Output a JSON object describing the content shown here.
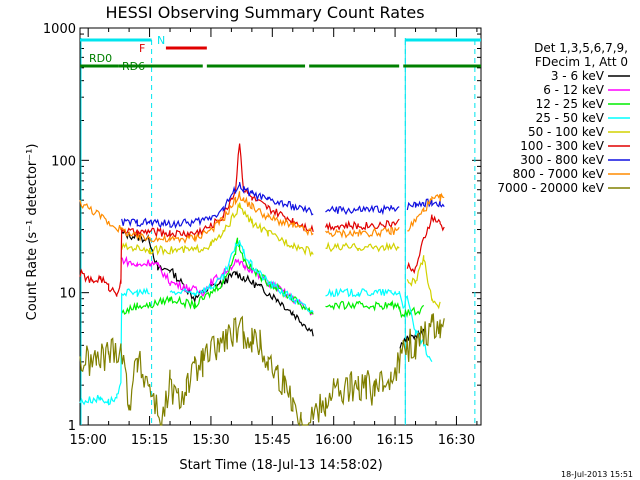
{
  "chart_data": {
    "type": "line",
    "title": "HESSI Observing Summary Count Rates",
    "xlabel": "Start Time (18-Jul-13 14:58:02)",
    "ylabel": "Count Rate (s⁻¹ detector⁻¹)",
    "y_scale": "log",
    "ylim": [
      1,
      1000
    ],
    "xlim_minutes": [
      -2,
      38
    ],
    "x_ticks": [
      "15:00",
      "15:15",
      "15:30",
      "15:45",
      "16:00",
      "16:15",
      "16:30"
    ],
    "x_tick_minutes": [
      0,
      15,
      30,
      45,
      60,
      75,
      90
    ],
    "y_ticks": [
      "1",
      "10",
      "100",
      "1000"
    ],
    "y_tick_values": [
      1,
      10,
      100,
      1000
    ],
    "legend_header": [
      "Det 1,3,5,6,7,9,",
      "FDecim 1, Att 0"
    ],
    "legend_placement": "right",
    "timestamp": "18-Jul-2013 15:51",
    "flags": [
      {
        "name": "N",
        "color": "#00e5ee",
        "segments": [
          [
            -2,
            15.5
          ],
          [
            77.5,
            96
          ]
        ]
      },
      {
        "name": "F",
        "color": "#e00000",
        "segments": [
          [
            19,
            29
          ]
        ]
      },
      {
        "name": "RD0",
        "color": "#008000",
        "segments": [
          [
            -2,
            7.5
          ]
        ]
      },
      {
        "name": "RD6",
        "color": "#008000",
        "segments": [
          [
            7.5,
            28
          ],
          [
            29,
            53
          ],
          [
            54,
            76
          ],
          [
            77,
            96
          ]
        ]
      }
    ],
    "saa_lines_minutes": [
      15.5,
      77.5,
      94.5
    ],
    "series": [
      {
        "name": "3 - 6 keV",
        "color": "#000000",
        "x": [
          -2,
          8,
          8.2,
          15,
          17,
          20,
          26,
          30,
          33,
          36,
          38,
          42,
          46,
          50,
          55,
          58,
          66,
          74,
          76,
          76.2,
          78,
          82
        ],
        "y": [
          null,
          null,
          28,
          25,
          15,
          15,
          9,
          11,
          12,
          14,
          13,
          11,
          9,
          7,
          5,
          null,
          null,
          null,
          null,
          4,
          4.5,
          5
        ]
      },
      {
        "name": "6 - 12 keV",
        "color": "#ff00ff",
        "x": [
          8,
          12,
          15,
          17,
          20,
          24,
          28,
          30,
          33,
          36,
          38,
          40,
          42,
          46,
          50,
          55,
          58
        ],
        "y": [
          18,
          16,
          17,
          16,
          12,
          11,
          10,
          12,
          14,
          17,
          16,
          15,
          13,
          11,
          9,
          7,
          null
        ]
      },
      {
        "name": "12 - 25 keV",
        "color": "#00ee00",
        "x": [
          -2,
          8,
          8.2,
          12,
          15,
          20,
          26,
          30,
          33,
          36,
          36.5,
          37,
          38,
          40,
          44,
          50,
          55,
          56,
          58,
          66,
          74,
          76,
          76.2,
          82
        ],
        "y": [
          null,
          null,
          7,
          8,
          8,
          9,
          8,
          10,
          12,
          20,
          26,
          22,
          18,
          15,
          12,
          9,
          7,
          null,
          8,
          8,
          8,
          8,
          7,
          7.5
        ]
      },
      {
        "name": "25 - 50 keV",
        "color": "#00ffff",
        "x": [
          -2,
          3,
          5,
          7,
          8,
          8.2,
          12,
          15,
          15.5,
          17,
          20,
          26,
          30,
          33,
          36,
          37,
          38,
          40,
          44,
          50,
          55,
          56,
          58,
          66,
          74,
          76,
          77,
          78,
          80,
          82,
          84
        ],
        "y": [
          1.5,
          1.6,
          1.5,
          1.6,
          2,
          10,
          10,
          10,
          null,
          null,
          10,
          10,
          11,
          13,
          22,
          25,
          20,
          16,
          12,
          9,
          7,
          null,
          10,
          10,
          10,
          10,
          8,
          9,
          5,
          4,
          3
        ]
      },
      {
        "name": "50 - 100 keV",
        "color": "#d2d200",
        "x": [
          -2,
          8,
          8.2,
          12,
          15,
          20,
          26,
          30,
          33,
          36,
          37,
          38,
          40,
          44,
          50,
          55,
          56,
          58,
          66,
          74,
          76,
          77,
          78,
          80,
          82,
          84,
          86
        ],
        "y": [
          null,
          null,
          22,
          22,
          21,
          21,
          21,
          23,
          28,
          40,
          45,
          40,
          34,
          28,
          23,
          20,
          null,
          22,
          22,
          22,
          22,
          null,
          12,
          12,
          18,
          9,
          8
        ]
      },
      {
        "name": "100 - 300 keV",
        "color": "#e00000",
        "x": [
          -2,
          1,
          3,
          5,
          7,
          8,
          8.2,
          12,
          15,
          20,
          26,
          30,
          33,
          36,
          37,
          38,
          40,
          44,
          50,
          55,
          56,
          58,
          66,
          74,
          76,
          77,
          78,
          80,
          82,
          84,
          86,
          87
        ],
        "y": [
          14,
          12,
          13,
          11,
          10,
          12,
          30,
          28,
          29,
          28,
          28,
          32,
          38,
          60,
          140,
          60,
          52,
          43,
          35,
          30,
          null,
          32,
          32,
          33,
          34,
          null,
          16,
          15,
          25,
          37,
          33,
          30
        ]
      },
      {
        "name": "300 - 800 keV",
        "color": "#1010e0",
        "x": [
          -2,
          8,
          8.2,
          12,
          15,
          20,
          26,
          30,
          33,
          36,
          37,
          38,
          40,
          44,
          50,
          55,
          56,
          58,
          66,
          74,
          76,
          77,
          78,
          80,
          82,
          84,
          86,
          87
        ],
        "y": [
          null,
          null,
          34,
          34,
          34,
          33,
          34,
          37,
          43,
          60,
          65,
          60,
          56,
          50,
          45,
          40,
          null,
          42,
          42,
          43,
          45,
          null,
          45,
          47,
          48,
          48,
          47,
          46
        ]
      },
      {
        "name": "800 - 7000 keV",
        "color": "#ff8c00",
        "x": [
          -2,
          2,
          5,
          8,
          12,
          15,
          20,
          26,
          30,
          33,
          36,
          37,
          38,
          40,
          44,
          50,
          55,
          56,
          58,
          66,
          74,
          76,
          77,
          78,
          80,
          82,
          84,
          86,
          87
        ],
        "y": [
          48,
          40,
          34,
          30,
          26,
          26,
          25,
          26,
          30,
          36,
          50,
          55,
          50,
          45,
          37,
          32,
          28,
          null,
          28,
          28,
          29,
          30,
          null,
          30,
          35,
          42,
          50,
          52,
          53
        ]
      },
      {
        "name": "7000 - 20000 keV",
        "color": "#808000",
        "x": [
          -2,
          2,
          5,
          8,
          10,
          12,
          15,
          18,
          20,
          22,
          24,
          26,
          28,
          30,
          32,
          34,
          36,
          38,
          40,
          42,
          44,
          46,
          48,
          50,
          52,
          55,
          58,
          60,
          62,
          64,
          66,
          68,
          70,
          72,
          74,
          76,
          78,
          80,
          82,
          84,
          86,
          87
        ],
        "y": [
          3,
          3,
          3.5,
          4,
          1.5,
          3,
          2,
          1,
          2,
          1.5,
          2,
          2.5,
          3,
          3.5,
          4,
          4.5,
          5,
          5,
          4.5,
          4,
          3,
          2.5,
          2,
          1.6,
          1,
          1.2,
          1.5,
          2,
          1.6,
          2,
          1.8,
          2,
          1.8,
          2,
          2.5,
          3,
          4,
          4,
          5,
          5.5,
          6,
          6
        ]
      }
    ]
  }
}
